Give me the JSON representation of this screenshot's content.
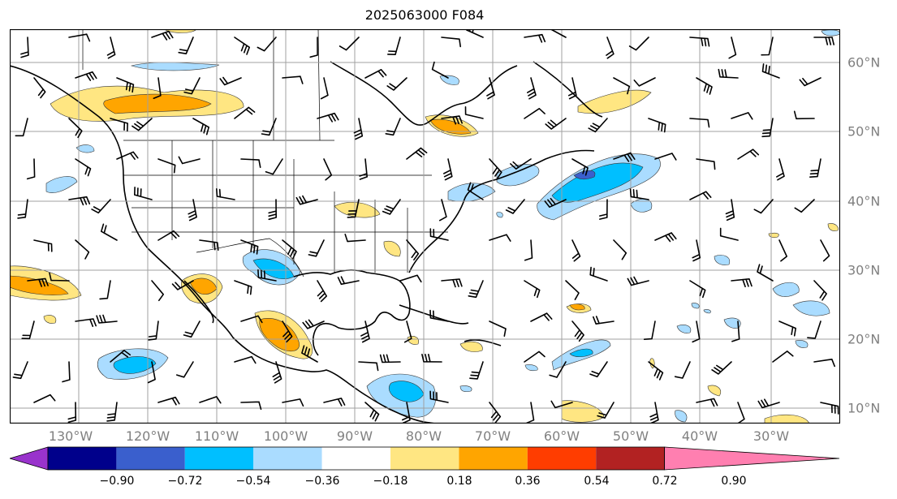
{
  "title": "2025063000 F084",
  "lon_labels": [
    "130°W",
    "120°W",
    "110°W",
    "100°W",
    "90°W",
    "80°W",
    "70°W",
    "60°W",
    "50°W",
    "40°W",
    "30°W"
  ],
  "lat_labels": [
    "60°N",
    "50°N",
    "40°N",
    "30°N",
    "20°N",
    "10°N"
  ],
  "colorbar": {
    "ticks": [
      "−0.90",
      "−0.72",
      "−0.54",
      "−0.36",
      "−0.18",
      "0.18",
      "0.36",
      "0.54",
      "0.72",
      "0.90"
    ],
    "colors": [
      "#9933cc",
      "#00008b",
      "#3a5fcd",
      "#00bfff",
      "#aadcff",
      "#ffffff",
      "#ffe682",
      "#ffa500",
      "#ff3d00",
      "#b22222",
      "#ff7fb0"
    ]
  },
  "map": {
    "projection": "PlateCarree",
    "lon_range": [
      -138,
      -17
    ],
    "lat_range": [
      8,
      65
    ],
    "gridlines": true,
    "coastlines": true,
    "borders": true,
    "wind_barbs": true
  }
}
